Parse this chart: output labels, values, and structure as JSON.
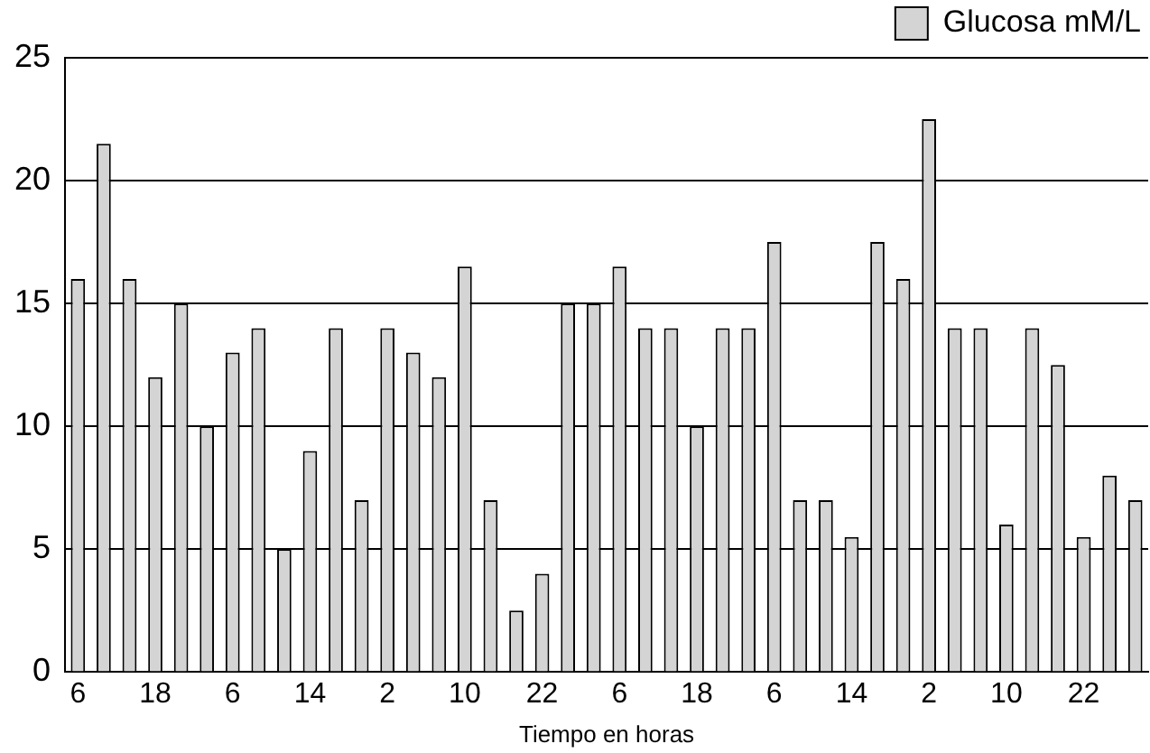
{
  "chart_data": {
    "type": "bar",
    "xlabel": "Tiempo en horas",
    "categories": [
      "6",
      null,
      null,
      "18",
      null,
      null,
      "6",
      null,
      null,
      "14",
      null,
      null,
      "2",
      null,
      null,
      "10",
      null,
      null,
      "22",
      null,
      null,
      "6",
      null,
      null,
      "18",
      null,
      null,
      "6",
      null,
      null,
      "14",
      null,
      null,
      "2",
      null,
      null,
      "10",
      null,
      null,
      "22",
      null,
      null
    ],
    "series": [
      {
        "name": "Glucosa mM/L",
        "color": "#d4d4d4",
        "values": [
          16,
          21.5,
          16,
          12,
          15,
          10,
          13,
          14,
          5,
          9,
          14,
          7,
          14,
          13,
          12,
          16.5,
          7,
          2.5,
          4,
          15,
          15,
          16.5,
          14,
          14,
          10,
          14,
          14,
          17.5,
          7,
          7,
          5.5,
          17.5,
          16,
          22.5,
          14,
          14,
          6,
          14,
          12.5,
          5.5,
          8,
          7
        ]
      }
    ],
    "ylim": [
      0,
      25
    ],
    "yticks": [
      0,
      5,
      10,
      15,
      20,
      25
    ],
    "grid": "y",
    "legend": "top right"
  }
}
